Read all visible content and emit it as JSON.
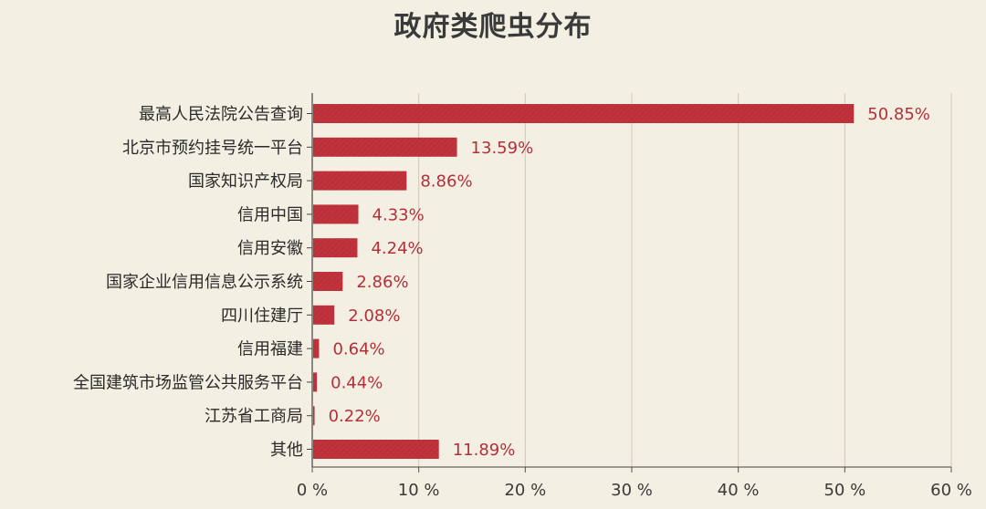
{
  "chart_data": {
    "type": "bar",
    "orientation": "horizontal",
    "title": "政府类爬虫分布",
    "categories": [
      "最高人民法院公告查询",
      "北京市预约挂号统一平台",
      "国家知识产权局",
      "信用中国",
      "信用安徽",
      "国家企业信用信息公示系统",
      "四川住建厅",
      "信用福建",
      "全国建筑市场监管公共服务平台",
      "江苏省工商局",
      "其他"
    ],
    "values": [
      50.85,
      13.59,
      8.86,
      4.33,
      4.24,
      2.86,
      2.08,
      0.64,
      0.44,
      0.22,
      11.89
    ],
    "value_labels": [
      "50.85%",
      "13.59%",
      "8.86%",
      "4.33%",
      "4.24%",
      "2.86%",
      "2.08%",
      "0.64%",
      "0.44%",
      "0.22%",
      "11.89%"
    ],
    "xlim": [
      0,
      60
    ],
    "xticks": [
      0,
      10,
      20,
      30,
      40,
      50,
      60
    ],
    "xtick_labels": [
      "0 %",
      "10 %",
      "20 %",
      "30 %",
      "40 %",
      "50 %",
      "60 %"
    ],
    "grid": true,
    "bar_color": "#c0323c",
    "value_label_color": "#b3303a",
    "background_color": "#f3efe2"
  }
}
